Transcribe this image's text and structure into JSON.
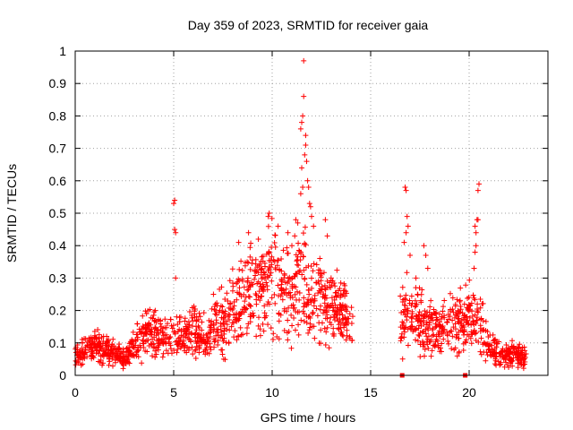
{
  "chart_data": {
    "type": "scatter",
    "title": "Day 359 of 2023, SRMTID for receiver gaia",
    "xlabel": "GPS time / hours",
    "ylabel": "SRMTID / TECUs",
    "xlim": [
      0,
      24
    ],
    "ylim": [
      0,
      1
    ],
    "x_ticks": [
      0,
      5,
      10,
      15,
      20
    ],
    "y_ticks": [
      0,
      0.1,
      0.2,
      0.3,
      0.4,
      0.5,
      0.6,
      0.7,
      0.8,
      0.9,
      1
    ],
    "x_tick_labels": [
      "0",
      "5",
      "10",
      "15",
      "20"
    ],
    "y_tick_labels": [
      "0",
      "0.1",
      "0.2",
      "0.3",
      "0.4",
      "0.5",
      "0.6",
      "0.7",
      "0.8",
      "0.9",
      "1"
    ],
    "grid": true,
    "marker": "plus",
    "color": "#ff0000",
    "series": [
      {
        "name": "SRMTID",
        "trend": [
          [
            0.0,
            0.06
          ],
          [
            0.5,
            0.08
          ],
          [
            1.0,
            0.09
          ],
          [
            1.5,
            0.08
          ],
          [
            2.0,
            0.07
          ],
          [
            2.5,
            0.05
          ],
          [
            3.0,
            0.09
          ],
          [
            3.5,
            0.12
          ],
          [
            4.0,
            0.13
          ],
          [
            4.5,
            0.12
          ],
          [
            5.0,
            0.11
          ],
          [
            5.5,
            0.12
          ],
          [
            6.0,
            0.14
          ],
          [
            6.5,
            0.11
          ],
          [
            7.0,
            0.15
          ],
          [
            7.5,
            0.16
          ],
          [
            8.0,
            0.2
          ],
          [
            8.5,
            0.22
          ],
          [
            9.0,
            0.26
          ],
          [
            9.5,
            0.28
          ],
          [
            10.0,
            0.3
          ],
          [
            10.5,
            0.26
          ],
          [
            11.0,
            0.25
          ],
          [
            11.5,
            0.3
          ],
          [
            12.0,
            0.24
          ],
          [
            12.5,
            0.24
          ],
          [
            13.0,
            0.22
          ],
          [
            13.5,
            0.2
          ],
          [
            14.0,
            0.15
          ],
          [
            16.5,
            0.16
          ],
          [
            17.0,
            0.2
          ],
          [
            17.5,
            0.16
          ],
          [
            18.0,
            0.16
          ],
          [
            18.5,
            0.14
          ],
          [
            19.0,
            0.17
          ],
          [
            19.5,
            0.16
          ],
          [
            20.0,
            0.18
          ],
          [
            20.5,
            0.17
          ],
          [
            21.0,
            0.09
          ],
          [
            21.5,
            0.07
          ],
          [
            22.0,
            0.07
          ],
          [
            22.5,
            0.06
          ],
          [
            22.9,
            0.05
          ]
        ],
        "peaks": [
          [
            5.05,
            0.54
          ],
          [
            5.0,
            0.53
          ],
          [
            5.05,
            0.45
          ],
          [
            5.1,
            0.44
          ],
          [
            5.1,
            0.3
          ],
          [
            8.3,
            0.41
          ],
          [
            8.8,
            0.44
          ],
          [
            9.3,
            0.42
          ],
          [
            9.8,
            0.49
          ],
          [
            9.85,
            0.5
          ],
          [
            10.3,
            0.46
          ],
          [
            10.8,
            0.44
          ],
          [
            11.0,
            0.4
          ],
          [
            11.45,
            0.76
          ],
          [
            11.5,
            0.78
          ],
          [
            11.55,
            0.8
          ],
          [
            11.6,
            0.86
          ],
          [
            11.6,
            0.97
          ],
          [
            11.65,
            0.68
          ],
          [
            11.7,
            0.74
          ],
          [
            11.75,
            0.66
          ],
          [
            11.8,
            0.6
          ],
          [
            11.5,
            0.64
          ],
          [
            11.55,
            0.58
          ],
          [
            11.45,
            0.56
          ],
          [
            11.9,
            0.53
          ],
          [
            11.95,
            0.52
          ],
          [
            12.0,
            0.49
          ],
          [
            11.3,
            0.47
          ],
          [
            11.2,
            0.48
          ],
          [
            11.7,
            0.71
          ],
          [
            11.85,
            0.58
          ],
          [
            12.1,
            0.46
          ],
          [
            12.7,
            0.48
          ],
          [
            12.8,
            0.43
          ],
          [
            16.75,
            0.58
          ],
          [
            16.8,
            0.57
          ],
          [
            16.85,
            0.49
          ],
          [
            16.9,
            0.46
          ],
          [
            16.7,
            0.41
          ],
          [
            16.8,
            0.44
          ],
          [
            17.0,
            0.37
          ],
          [
            17.3,
            0.3
          ],
          [
            17.8,
            0.37
          ],
          [
            17.7,
            0.4
          ],
          [
            17.9,
            0.33
          ],
          [
            20.35,
            0.44
          ],
          [
            20.3,
            0.46
          ],
          [
            20.4,
            0.48
          ],
          [
            20.45,
            0.57
          ],
          [
            20.5,
            0.59
          ],
          [
            20.35,
            0.4
          ],
          [
            20.25,
            0.33
          ],
          [
            20.45,
            0.48
          ],
          [
            20.3,
            0.38
          ]
        ],
        "zero_points": [
          [
            16.6,
            0
          ],
          [
            19.8,
            0
          ]
        ]
      }
    ]
  }
}
